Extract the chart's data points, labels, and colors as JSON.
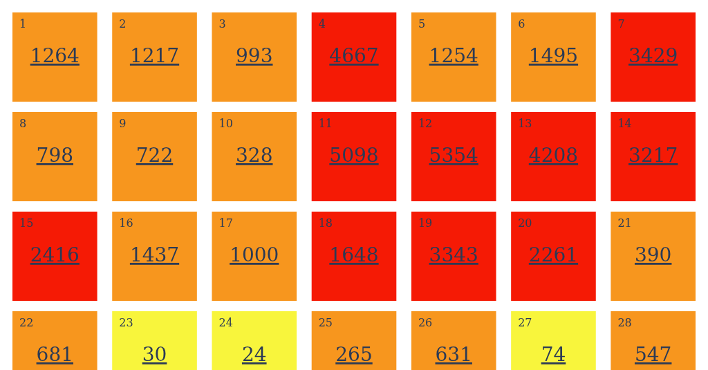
{
  "chart_data": {
    "type": "heatmap",
    "categories": [
      null,
      null,
      null,
      null,
      null,
      null,
      null
    ],
    "y_categories": [
      null,
      null,
      null,
      null
    ],
    "data_labels": true,
    "cells": [
      [
        1264,
        1217,
        993,
        4667,
        1254,
        1495,
        3429
      ],
      [
        798,
        722,
        328,
        5098,
        5354,
        4208,
        3217
      ],
      [
        2416,
        1437,
        1000,
        1648,
        3343,
        2261,
        390
      ],
      [
        681,
        30,
        24,
        265,
        631,
        74,
        547
      ]
    ],
    "annotations": [
      "1",
      "2",
      "3",
      "4",
      "5",
      "6",
      "7",
      "8",
      "9",
      "10",
      "11",
      "12",
      "13",
      "14",
      "15",
      "16",
      "17",
      "18",
      "19",
      "20",
      "21",
      "22",
      "23",
      "24",
      "25",
      "26",
      "27",
      "28"
    ],
    "colors": [
      [
        "#f7961e",
        "#f7961e",
        "#f7961e",
        "#f51a05",
        "#f7961e",
        "#f7961e",
        "#f51a05"
      ],
      [
        "#f7961e",
        "#f7961e",
        "#f7961e",
        "#f51a05",
        "#f51a05",
        "#f51a05",
        "#f51a05"
      ],
      [
        "#f51a05",
        "#f7961e",
        "#f7961e",
        "#f51a05",
        "#f51a05",
        "#f51a05",
        "#f7961e"
      ],
      [
        "#f7961e",
        "#f8f53c",
        "#f8f53c",
        "#f7961e",
        "#f7961e",
        "#f8f53c",
        "#f7961e"
      ]
    ]
  }
}
